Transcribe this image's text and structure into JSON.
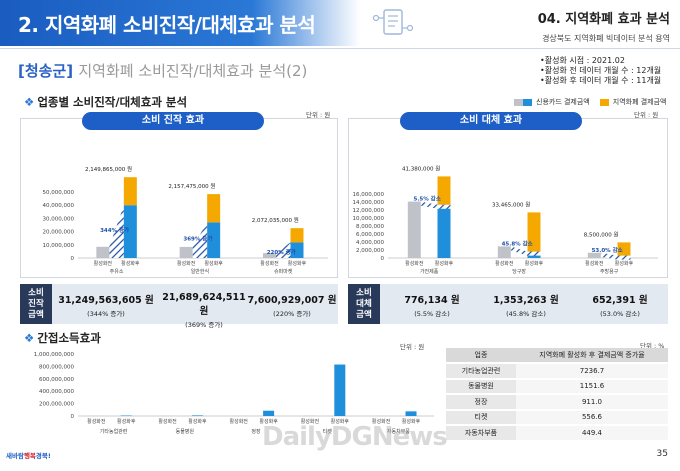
{
  "header": {
    "title": "2. 지역화폐 소비진작/대체효과 분석",
    "section": "04. 지역화폐 효과 분석",
    "subtitle": "경상북도 지역화폐 빅데이터 분석 용역"
  },
  "subtitle": {
    "county": "[청송군]",
    "text": "지역화폐 소비진작/대체효과 분석(2)"
  },
  "meta": [
    "활성화 시점 : 2021.02",
    "활성화 전 데이터 개월 수 : 12개월",
    "활성화 후 데이터 개월 수 : 11개월"
  ],
  "section1": {
    "title": "업종별 소비진작/대체효과 분석"
  },
  "legend": {
    "card": "신용카드 결제금액",
    "local": "지역화폐 결제금액",
    "card_color": "#bfc3c9",
    "local_color": "#f5a800",
    "after_color": "#1f8fdc"
  },
  "boost": {
    "pill": "소비 진작 효과",
    "unit": "단위 : 원",
    "chart_data": {
      "type": "bar",
      "categories": [
        "주유소",
        "일반한식",
        "슈퍼마켓"
      ],
      "bar_labels": [
        "활성화전",
        "활성화후"
      ],
      "y_ticks": [
        "50,000,000",
        "40,000,000",
        "30,000,000",
        "20,000,000",
        "10,000,000",
        "0"
      ],
      "ylim": [
        0,
        50000000
      ],
      "before": [
        8500000,
        8400000,
        3700000
      ],
      "after_card": [
        40000000,
        27000000,
        11800000
      ],
      "after_local": [
        21200000,
        21400000,
        10800000
      ],
      "effect_labels": [
        "344% 증가",
        "369% 증가",
        "220% 증가"
      ],
      "increase_amounts": [
        "2,149,865,000 원",
        "2,157,475,000 원",
        "2,072,035,000 원"
      ]
    },
    "summary_label": "소비\n진작\n금액",
    "summary": [
      {
        "value": "31,249,563,605 원",
        "note": "(344% 증가)"
      },
      {
        "value": "21,689,624,511 원",
        "note": "(369% 증가)"
      },
      {
        "value": "7,600,929,007 원",
        "note": "(220% 증가)"
      }
    ]
  },
  "substitution": {
    "pill": "소비 대체 효과",
    "unit": "단위 : 원",
    "chart_data": {
      "type": "bar",
      "categories": [
        "가전제품",
        "당구장",
        "주방용구"
      ],
      "bar_labels": [
        "활성화전",
        "활성화후"
      ],
      "y_ticks": [
        "16,000,000",
        "14,000,000",
        "12,000,000",
        "10,000,000",
        "8,000,000",
        "6,000,000",
        "4,000,000",
        "2,000,000",
        "0"
      ],
      "ylim": [
        0,
        16000000
      ],
      "before": [
        14100000,
        2900000,
        1300000
      ],
      "after_card": [
        13300000,
        1600000,
        600000
      ],
      "after_local": [
        7100000,
        9800000,
        3300000
      ],
      "effect_labels": [
        "5.5% 감소",
        "45.8% 감소",
        "53.0% 감소"
      ],
      "decrease_amounts": [
        "41,380,000 원",
        "33,465,000 원",
        "8,500,000 원"
      ]
    },
    "summary_label": "소비\n대체\n금액",
    "summary": [
      {
        "value": "776,134 원",
        "note": "(5.5% 감소)"
      },
      {
        "value": "1,353,263 원",
        "note": "(45.8% 감소)"
      },
      {
        "value": "652,391 원",
        "note": "(53.0% 감소)"
      }
    ]
  },
  "section2": {
    "title": "간접소득효과"
  },
  "indirect": {
    "unit": "단위 : 원",
    "chart_data": {
      "type": "bar",
      "categories": [
        "기타농업관련",
        "동물병원",
        "정장",
        "티켓",
        "자동차부품"
      ],
      "bar_labels": [
        "활성화전",
        "활성화후"
      ],
      "y_ticks": [
        "1,000,000,000",
        "800,000,000",
        "600,000,000",
        "400,000,000",
        "200,000,000",
        "0"
      ],
      "ylim": [
        0,
        1000000000
      ],
      "before": [
        3000000,
        2500000,
        2000000,
        8000000,
        2000000
      ],
      "after": [
        8000000,
        10000000,
        85000000,
        830000000,
        75000000
      ]
    }
  },
  "table": {
    "unit": "단위 : %",
    "headers": [
      "업종",
      "지역화폐 활성화 후 결제금액 증가율"
    ],
    "rows": [
      [
        "기타농업관련",
        "7236.7"
      ],
      [
        "동물병원",
        "1151.6"
      ],
      [
        "정장",
        "911.0"
      ],
      [
        "티켓",
        "556.6"
      ],
      [
        "자동차부품",
        "449.4"
      ]
    ]
  },
  "footer": {
    "logo_a": "새바람",
    "logo_b": "행복",
    "logo_c": "경북!",
    "watermark": "DailyDGNews",
    "page": "35"
  }
}
